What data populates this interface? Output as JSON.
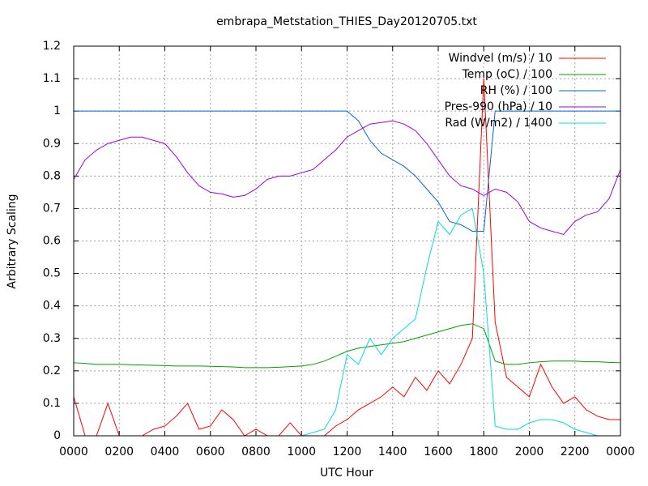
{
  "chart_data": {
    "type": "line",
    "title": "embrapa_Metstation_THIES_Day20120705.txt",
    "x_label": "UTC Hour",
    "y_label": "Arbitrary Scaling",
    "x": [
      0,
      0.5,
      1,
      1.5,
      2,
      2.5,
      3,
      3.5,
      4,
      4.5,
      5,
      5.5,
      6,
      6.5,
      7,
      7.5,
      8,
      8.5,
      9,
      9.5,
      10,
      10.5,
      11,
      11.5,
      12,
      12.5,
      13,
      13.5,
      14,
      14.5,
      15,
      15.5,
      16,
      16.5,
      17,
      17.5,
      18,
      18.5,
      19,
      19.5,
      20,
      20.5,
      21,
      21.5,
      22,
      22.5,
      23,
      23.5,
      24
    ],
    "series": [
      {
        "name": "Windvel (m/s) / 10",
        "color": "#ff0000",
        "values": [
          0.12,
          0,
          0,
          0.1,
          0,
          0,
          0,
          0.02,
          0.03,
          0.06,
          0.1,
          0.02,
          0.03,
          0.08,
          0.05,
          0,
          0.02,
          0,
          0,
          0.04,
          0,
          0,
          0,
          0.03,
          0.05,
          0.08,
          0.1,
          0.12,
          0.15,
          0.12,
          0.18,
          0.14,
          0.2,
          0.16,
          0.22,
          0.3,
          1.1,
          0.35,
          0.18,
          0.15,
          0.12,
          0.22,
          0.15,
          0.1,
          0.12,
          0.08,
          0.06,
          0.05,
          0.05
        ]
      },
      {
        "name": "Temp (oC) / 100",
        "color": "#00a000",
        "values": [
          0.225,
          0.223,
          0.22,
          0.22,
          0.22,
          0.219,
          0.218,
          0.217,
          0.216,
          0.215,
          0.215,
          0.215,
          0.214,
          0.213,
          0.212,
          0.21,
          0.21,
          0.21,
          0.211,
          0.213,
          0.215,
          0.22,
          0.23,
          0.245,
          0.26,
          0.27,
          0.275,
          0.28,
          0.285,
          0.29,
          0.3,
          0.31,
          0.32,
          0.33,
          0.34,
          0.345,
          0.33,
          0.23,
          0.22,
          0.22,
          0.225,
          0.228,
          0.23,
          0.23,
          0.23,
          0.228,
          0.228,
          0.226,
          0.225
        ]
      },
      {
        "name": "RH (%) / 100",
        "color": "#0066dd",
        "values": [
          1,
          1,
          1,
          1,
          1,
          1,
          1,
          1,
          1,
          1,
          1,
          1,
          1,
          1,
          1,
          1,
          1,
          1,
          1,
          1,
          1,
          1,
          1,
          1,
          1,
          0.97,
          0.91,
          0.87,
          0.85,
          0.83,
          0.8,
          0.76,
          0.72,
          0.66,
          0.65,
          0.63,
          0.63,
          1,
          1,
          1,
          1,
          1,
          1,
          1,
          1,
          1,
          1,
          1,
          1
        ]
      },
      {
        "name": "Pres-990 (hPa) / 10",
        "color": "#a000e0",
        "values": [
          0.79,
          0.85,
          0.88,
          0.9,
          0.91,
          0.92,
          0.92,
          0.91,
          0.9,
          0.86,
          0.81,
          0.77,
          0.75,
          0.745,
          0.735,
          0.74,
          0.76,
          0.79,
          0.8,
          0.8,
          0.81,
          0.82,
          0.85,
          0.88,
          0.92,
          0.94,
          0.96,
          0.965,
          0.97,
          0.96,
          0.94,
          0.9,
          0.85,
          0.8,
          0.77,
          0.76,
          0.74,
          0.76,
          0.75,
          0.72,
          0.66,
          0.64,
          0.63,
          0.62,
          0.66,
          0.68,
          0.69,
          0.73,
          0.82
        ]
      },
      {
        "name": "Rad (W/m2) / 1400",
        "color": "#00dddd",
        "values": [
          0,
          0,
          0,
          0,
          0,
          0,
          0,
          0,
          0,
          0,
          0,
          0,
          0,
          0,
          0,
          0,
          0,
          0,
          0,
          0,
          0,
          0.01,
          0.02,
          0.08,
          0.25,
          0.22,
          0.3,
          0.25,
          0.3,
          0.33,
          0.36,
          0.52,
          0.66,
          0.62,
          0.68,
          0.7,
          0.5,
          0.03,
          0.02,
          0.02,
          0.04,
          0.05,
          0.05,
          0.04,
          0.02,
          0.01,
          0,
          0,
          0
        ]
      }
    ],
    "xlim": [
      0,
      24
    ],
    "xticks": [
      {
        "value": 0,
        "label": "0000"
      },
      {
        "value": 2,
        "label": "0200"
      },
      {
        "value": 4,
        "label": "0400"
      },
      {
        "value": 6,
        "label": "0600"
      },
      {
        "value": 8,
        "label": "0800"
      },
      {
        "value": 10,
        "label": "1000"
      },
      {
        "value": 12,
        "label": "1200"
      },
      {
        "value": 14,
        "label": "1400"
      },
      {
        "value": 16,
        "label": "1600"
      },
      {
        "value": 18,
        "label": "1800"
      },
      {
        "value": 20,
        "label": "2000"
      },
      {
        "value": 22,
        "label": "2200"
      },
      {
        "value": 24,
        "label": "0000"
      }
    ],
    "ylim": [
      0,
      1.2
    ],
    "yticks": [
      0,
      0.1,
      0.2,
      0.3,
      0.4,
      0.5,
      0.6,
      0.7,
      0.8,
      0.9,
      1,
      1.1,
      1.2
    ],
    "grid": true,
    "legend": "top-right"
  }
}
